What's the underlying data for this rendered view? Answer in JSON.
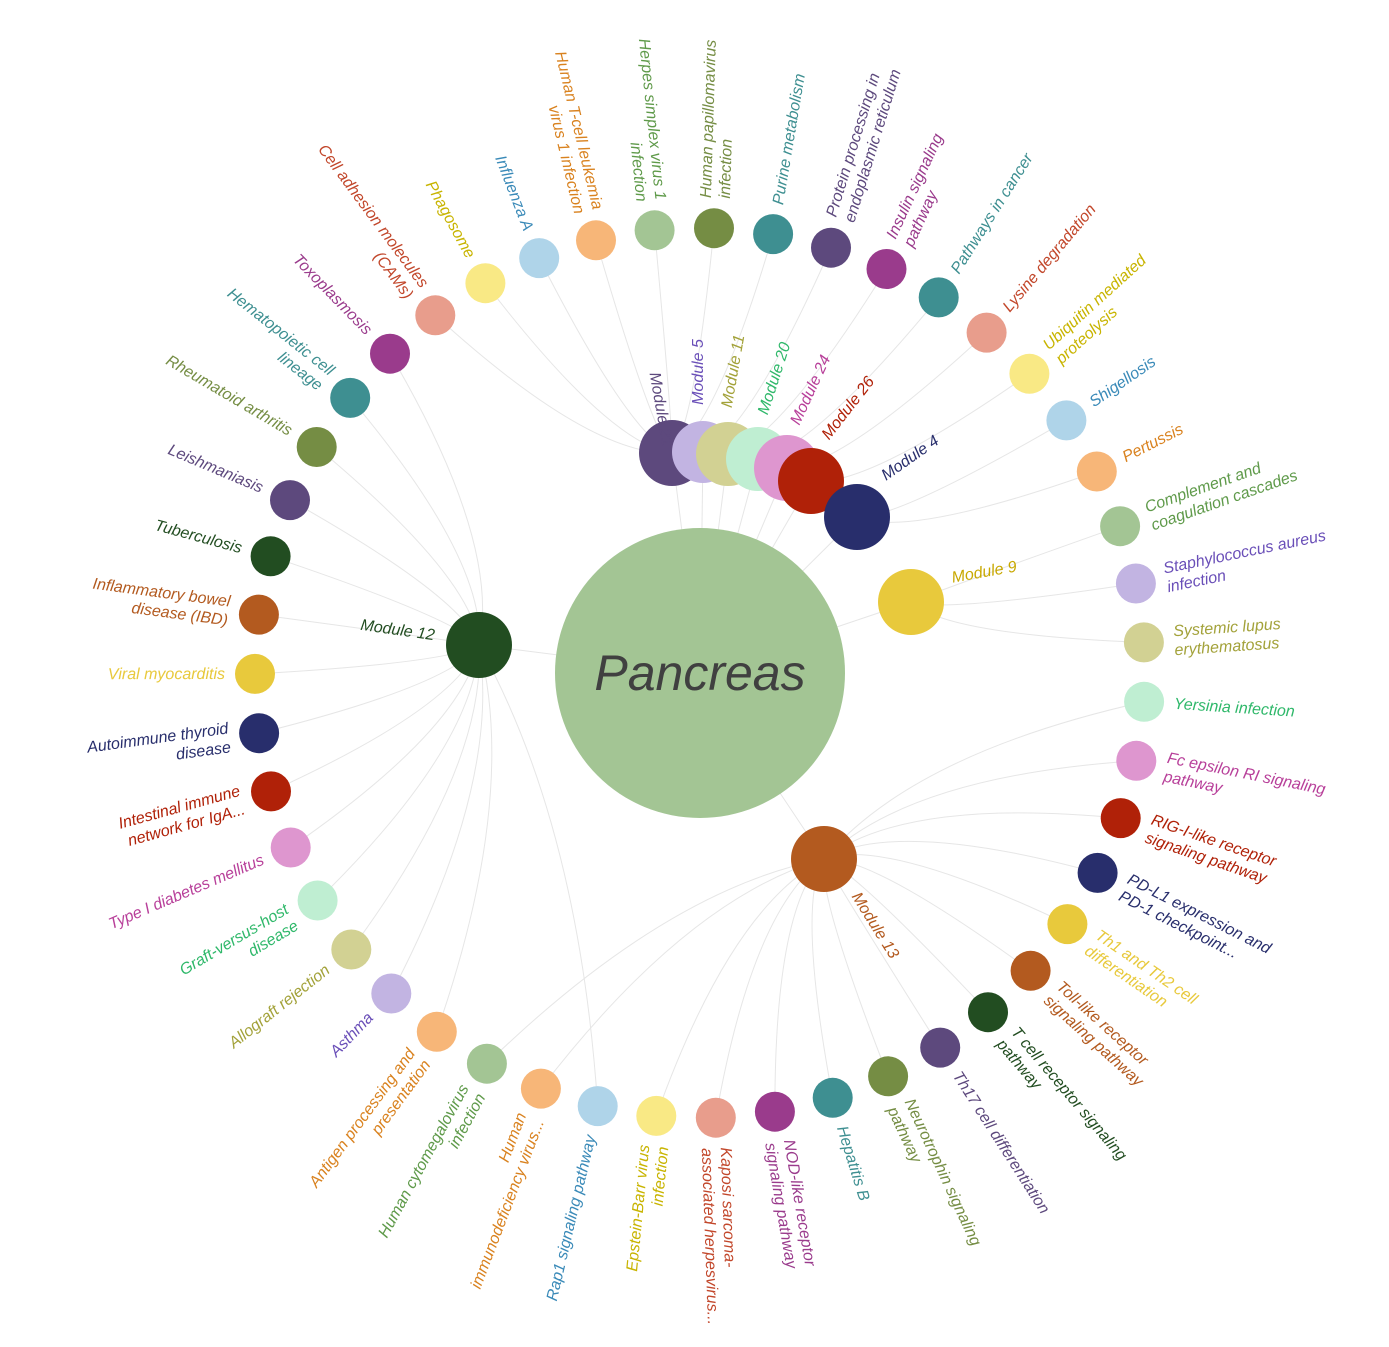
{
  "center": {
    "label": "Pancreas",
    "color": "#a3c594"
  },
  "modules": [
    {
      "id": "m21",
      "label": "Module 21",
      "color": "#5d497d"
    },
    {
      "id": "m5",
      "label": "Module 5",
      "color": "#c2b4e2"
    },
    {
      "id": "m11",
      "label": "Module 11",
      "color": "#d2d193"
    },
    {
      "id": "m20",
      "label": "Module 20",
      "color": "#bfeed2"
    },
    {
      "id": "m24",
      "label": "Module 24",
      "color": "#de96cf"
    },
    {
      "id": "m26",
      "label": "Module 26",
      "color": "#b02108"
    },
    {
      "id": "m4",
      "label": "Module 4",
      "color": "#282e6c"
    },
    {
      "id": "m9",
      "label": "Module 9",
      "color": "#e8c93c"
    },
    {
      "id": "m12",
      "label": "Module 12",
      "color": "#224d21"
    },
    {
      "id": "m13",
      "label": "Module 13",
      "color": "#b35a1f"
    }
  ],
  "pathways": [
    {
      "label": "Human papillomavirus infection",
      "lines": [
        "Human papillomavirus",
        "infection"
      ],
      "color": "#758d44",
      "module": "m21"
    },
    {
      "label": "Purine metabolism",
      "lines": [
        "Purine metabolism"
      ],
      "color": "#3e8f91",
      "module": "m21"
    },
    {
      "label": "Protein processing in endoplasmic reticulum",
      "lines": [
        "Protein processing in",
        "endoplasmic reticulum"
      ],
      "color": "#5d497d",
      "module": "m5"
    },
    {
      "label": "Insulin signaling pathway",
      "lines": [
        "Insulin signaling",
        "pathway"
      ],
      "color": "#9a3b8c",
      "module": "m11"
    },
    {
      "label": "Pathways in cancer",
      "lines": [
        "Pathways in cancer"
      ],
      "color": "#3e8f91",
      "module": "m20"
    },
    {
      "label": "Lysine degradation",
      "lines": [
        "Lysine degradation"
      ],
      "color": "#e89d8c",
      "module": "m24"
    },
    {
      "label": "Ubiquitin mediated proteolysis",
      "lines": [
        "Ubiquitin mediated",
        "proteolysis"
      ],
      "color": "#f9e985",
      "module": "m26"
    },
    {
      "label": "Shigellosis",
      "lines": [
        "Shigellosis"
      ],
      "color": "#afd4e9",
      "module": "m4"
    },
    {
      "label": "Pertussis",
      "lines": [
        "Pertussis"
      ],
      "color": "#f7b678",
      "module": "m4"
    },
    {
      "label": "Complement and coagulation cascades",
      "lines": [
        "Complement and",
        "coagulation cascades"
      ],
      "color": "#a3c594",
      "module": "m9"
    },
    {
      "label": "Staphylococcus aureus infection",
      "lines": [
        "Staphylococcus aureus",
        "infection"
      ],
      "color": "#c2b4e2",
      "module": "m9"
    },
    {
      "label": "Systemic lupus erythematosus",
      "lines": [
        "Systemic lupus",
        "erythematosus"
      ],
      "color": "#d2d193",
      "module": "m9"
    },
    {
      "label": "Yersinia infection",
      "lines": [
        "Yersinia infection"
      ],
      "color": "#bfeed2",
      "module": "m13"
    },
    {
      "label": "Fc epsilon RI signaling pathway",
      "lines": [
        "Fc epsilon RI signaling",
        "pathway"
      ],
      "color": "#de96cf",
      "module": "m13"
    },
    {
      "label": "RIG-I-like receptor signaling pathway",
      "lines": [
        "RIG-I-like receptor",
        "signaling pathway"
      ],
      "color": "#b02108",
      "module": "m13"
    },
    {
      "label": "PD-L1 expression and PD-1 checkpoint...",
      "lines": [
        "PD-L1 expression and",
        "PD-1 checkpoint..."
      ],
      "color": "#282e6c",
      "module": "m13"
    },
    {
      "label": "Th1 and Th2 cell differentiation",
      "lines": [
        "Th1 and Th2 cell",
        "differentiation"
      ],
      "color": "#e8c93c",
      "module": "m13"
    },
    {
      "label": "Toll-like receptor signaling pathway",
      "lines": [
        "Toll-like receptor",
        "signaling pathway"
      ],
      "color": "#b35a1f",
      "module": "m13"
    },
    {
      "label": "T cell receptor signaling pathway",
      "lines": [
        "T cell receptor signaling",
        "pathway"
      ],
      "color": "#224d21",
      "module": "m13"
    },
    {
      "label": "Th17 cell differentiation",
      "lines": [
        "Th17 cell differentiation"
      ],
      "color": "#5d497d",
      "module": "m13"
    },
    {
      "label": "Neurotrophin signaling pathway",
      "lines": [
        "Neurotrophin signaling",
        "pathway"
      ],
      "color": "#758d44",
      "module": "m13"
    },
    {
      "label": "Hepatitis B",
      "lines": [
        "Hepatitis B"
      ],
      "color": "#3e8f91",
      "module": "m13"
    },
    {
      "label": "NOD-like receptor signaling pathway",
      "lines": [
        "NOD-like receptor",
        "signaling pathway"
      ],
      "color": "#9a3b8c",
      "module": "m13"
    },
    {
      "label": "Kaposi sarcoma-associated herpesvirus...",
      "lines": [
        "Kaposi sarcoma-",
        "associated herpesvirus..."
      ],
      "color": "#e89d8c",
      "module": "m13"
    },
    {
      "label": "Epstein-Barr virus infection",
      "lines": [
        "Epstein-Barr virus",
        "infection"
      ],
      "color": "#f9e985",
      "module": "m13"
    },
    {
      "label": "Rap1 signaling pathway",
      "lines": [
        "Rap1 signaling pathway"
      ],
      "color": "#afd4e9",
      "module": "m12"
    },
    {
      "label": "Human immunodeficiency virus...",
      "lines": [
        "Human",
        "immunodeficiency virus..."
      ],
      "color": "#f7b678",
      "module": "m13"
    },
    {
      "label": "Human cytomegalovirus infection",
      "lines": [
        "Human cytomegalovirus",
        "infection"
      ],
      "color": "#a3c594",
      "module": "m13"
    },
    {
      "label": "Antigen processing and presentation",
      "lines": [
        "Antigen processing and",
        "presentation"
      ],
      "color": "#f7b678",
      "module": "m12"
    },
    {
      "label": "Asthma",
      "lines": [
        "Asthma"
      ],
      "color": "#c2b4e2",
      "module": "m12"
    },
    {
      "label": "Allograft rejection",
      "lines": [
        "Allograft rejection"
      ],
      "color": "#d2d193",
      "module": "m12"
    },
    {
      "label": "Graft-versus-host disease",
      "lines": [
        "Graft-versus-host",
        "disease"
      ],
      "color": "#bfeed2",
      "module": "m12"
    },
    {
      "label": "Type I diabetes mellitus",
      "lines": [
        "Type I diabetes mellitus"
      ],
      "color": "#de96cf",
      "module": "m12"
    },
    {
      "label": "Intestinal immune network for IgA...",
      "lines": [
        "Intestinal immune",
        "network for IgA..."
      ],
      "color": "#b02108",
      "module": "m12"
    },
    {
      "label": "Autoimmune thyroid disease",
      "lines": [
        "Autoimmune thyroid",
        "disease"
      ],
      "color": "#282e6c",
      "module": "m12"
    },
    {
      "label": "Viral myocarditis",
      "lines": [
        "Viral myocarditis"
      ],
      "color": "#e8c93c",
      "module": "m12"
    },
    {
      "label": "Inflammatory bowel disease (IBD)",
      "lines": [
        "Inflammatory bowel",
        "disease (IBD)"
      ],
      "color": "#b35a1f",
      "module": "m12"
    },
    {
      "label": "Tuberculosis",
      "lines": [
        "Tuberculosis"
      ],
      "color": "#224d21",
      "module": "m12"
    },
    {
      "label": "Leishmaniasis",
      "lines": [
        "Leishmaniasis"
      ],
      "color": "#5d497d",
      "module": "m12"
    },
    {
      "label": "Rheumatoid arthritis",
      "lines": [
        "Rheumatoid arthritis"
      ],
      "color": "#758d44",
      "module": "m12"
    },
    {
      "label": "Hematopoietic cell lineage",
      "lines": [
        "Hematopoietic cell",
        "lineage"
      ],
      "color": "#3e8f91",
      "module": "m12"
    },
    {
      "label": "Toxoplasmosis",
      "lines": [
        "Toxoplasmosis"
      ],
      "color": "#9a3b8c",
      "module": "m12"
    },
    {
      "label": "Cell adhesion molecules (CAMs)",
      "lines": [
        "Cell adhesion molecules",
        "(CAMs)"
      ],
      "color": "#e89d8c",
      "module": "m21"
    },
    {
      "label": "Phagosome",
      "lines": [
        "Phagosome"
      ],
      "color": "#f9e985",
      "module": "m21"
    },
    {
      "label": "Influenza A",
      "lines": [
        "Influenza A"
      ],
      "color": "#afd4e9",
      "module": "m21"
    },
    {
      "label": "Human T-cell leukemia virus 1 infection",
      "lines": [
        "Human T-cell leukemia",
        "virus 1 infection"
      ],
      "color": "#f7b678",
      "module": "m21"
    },
    {
      "label": "Herpes simplex virus 1 infection",
      "lines": [
        "Herpes simplex virus 1",
        "infection"
      ],
      "color": "#a3c594",
      "module": "m21"
    }
  ]
}
